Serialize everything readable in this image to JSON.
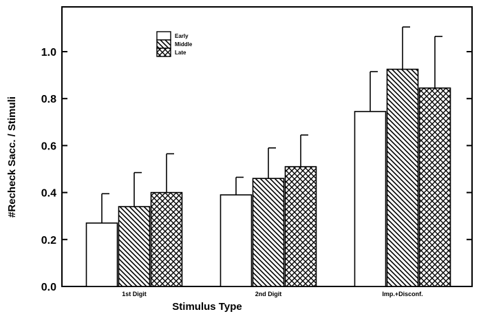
{
  "chart_data": {
    "type": "bar",
    "xlabel": "Stimulus Type",
    "ylabel": "#Recheck Sacc. / Stimuli",
    "categories": [
      "1st Digit",
      "2nd Digit",
      "Imp.+Disconf."
    ],
    "series": [
      {
        "name": "Early",
        "pattern": "none",
        "values": [
          0.27,
          0.39,
          0.745
        ],
        "errors": [
          0.125,
          0.075,
          0.17
        ]
      },
      {
        "name": "Middle",
        "pattern": "diagonal-hatch",
        "values": [
          0.34,
          0.46,
          0.925
        ],
        "errors": [
          0.145,
          0.13,
          0.18
        ]
      },
      {
        "name": "Late",
        "pattern": "cross-hatch",
        "values": [
          0.4,
          0.51,
          0.845
        ],
        "errors": [
          0.165,
          0.135,
          0.22
        ]
      }
    ],
    "ylim": [
      0,
      1.1
    ],
    "yticks": [
      0.0,
      0.2,
      0.4,
      0.6,
      0.8,
      1.0
    ],
    "ytick_labels": [
      "0.0",
      "0.2",
      "0.4",
      "0.6",
      "0.8",
      "1.0"
    ],
    "legend_position": "top-left",
    "grid": false,
    "colors": {
      "stroke": "#000000",
      "fill": "#ffffff"
    }
  }
}
